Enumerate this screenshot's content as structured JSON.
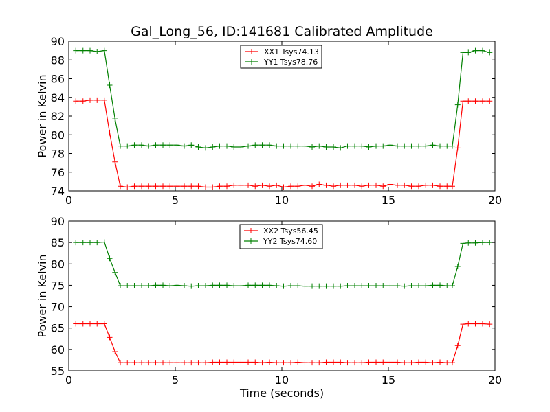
{
  "chart_data": [
    {
      "type": "line",
      "title": "Gal_Long_56, ID:141681 Calibrated Amplitude",
      "xlabel": "",
      "ylabel": "Power in Kelvin",
      "xlim": [
        0,
        20
      ],
      "ylim": [
        74,
        90
      ],
      "xticks": [
        0,
        5,
        10,
        15,
        20
      ],
      "yticks": [
        74,
        76,
        78,
        80,
        82,
        84,
        86,
        88,
        90
      ],
      "legend_position": "top-center",
      "grid": false,
      "x": [
        0.33,
        0.67,
        1.0,
        1.33,
        1.67,
        1.92,
        2.17,
        2.42,
        2.75,
        3.08,
        3.42,
        3.75,
        4.08,
        4.42,
        4.75,
        5.08,
        5.42,
        5.75,
        6.08,
        6.42,
        6.75,
        7.08,
        7.42,
        7.75,
        8.08,
        8.42,
        8.75,
        9.08,
        9.42,
        9.75,
        10.08,
        10.42,
        10.75,
        11.08,
        11.42,
        11.75,
        12.08,
        12.42,
        12.75,
        13.08,
        13.42,
        13.75,
        14.08,
        14.42,
        14.75,
        15.08,
        15.42,
        15.75,
        16.08,
        16.42,
        16.75,
        17.08,
        17.42,
        17.75,
        18.0,
        18.25,
        18.5,
        18.75,
        19.08,
        19.42,
        19.75
      ],
      "series": [
        {
          "name": "XX1 Tsys74.13",
          "color": "#ff0000",
          "values": [
            83.6,
            83.6,
            83.7,
            83.7,
            83.7,
            80.2,
            77.1,
            74.5,
            74.4,
            74.5,
            74.5,
            74.5,
            74.5,
            74.5,
            74.5,
            74.5,
            74.5,
            74.5,
            74.5,
            74.4,
            74.4,
            74.5,
            74.5,
            74.6,
            74.6,
            74.6,
            74.5,
            74.6,
            74.5,
            74.6,
            74.4,
            74.5,
            74.5,
            74.6,
            74.5,
            74.7,
            74.6,
            74.5,
            74.6,
            74.6,
            74.6,
            74.5,
            74.6,
            74.6,
            74.5,
            74.7,
            74.6,
            74.6,
            74.5,
            74.5,
            74.6,
            74.6,
            74.5,
            74.5,
            74.5,
            78.6,
            83.6,
            83.6,
            83.6,
            83.6,
            83.6
          ]
        },
        {
          "name": "YY1 Tsys78.76",
          "color": "#008000",
          "values": [
            89.0,
            89.0,
            89.0,
            88.9,
            89.0,
            85.3,
            81.7,
            78.8,
            78.8,
            78.9,
            78.9,
            78.8,
            78.9,
            78.9,
            78.9,
            78.9,
            78.8,
            78.9,
            78.7,
            78.6,
            78.7,
            78.8,
            78.8,
            78.7,
            78.7,
            78.8,
            78.9,
            78.9,
            78.9,
            78.8,
            78.8,
            78.8,
            78.8,
            78.8,
            78.7,
            78.8,
            78.7,
            78.7,
            78.6,
            78.8,
            78.8,
            78.8,
            78.7,
            78.8,
            78.8,
            78.9,
            78.8,
            78.8,
            78.8,
            78.8,
            78.8,
            78.9,
            78.8,
            78.8,
            78.8,
            83.2,
            88.8,
            88.8,
            89.0,
            89.0,
            88.8
          ]
        }
      ]
    },
    {
      "type": "line",
      "title": "",
      "xlabel": "Time (seconds)",
      "ylabel": "Power in Kelvin",
      "xlim": [
        0,
        20
      ],
      "ylim": [
        55,
        90
      ],
      "xticks": [
        0,
        5,
        10,
        15,
        20
      ],
      "yticks": [
        55,
        60,
        65,
        70,
        75,
        80,
        85,
        90
      ],
      "legend_position": "top-center",
      "grid": false,
      "x": [
        0.33,
        0.67,
        1.0,
        1.33,
        1.67,
        1.92,
        2.17,
        2.42,
        2.75,
        3.08,
        3.42,
        3.75,
        4.08,
        4.42,
        4.75,
        5.08,
        5.42,
        5.75,
        6.08,
        6.42,
        6.75,
        7.08,
        7.42,
        7.75,
        8.08,
        8.42,
        8.75,
        9.08,
        9.42,
        9.75,
        10.08,
        10.42,
        10.75,
        11.08,
        11.42,
        11.75,
        12.08,
        12.42,
        12.75,
        13.08,
        13.42,
        13.75,
        14.08,
        14.42,
        14.75,
        15.08,
        15.42,
        15.75,
        16.08,
        16.42,
        16.75,
        17.08,
        17.42,
        17.75,
        18.0,
        18.25,
        18.5,
        18.75,
        19.08,
        19.42,
        19.75
      ],
      "series": [
        {
          "name": "XX2 Tsys56.45",
          "color": "#ff0000",
          "values": [
            66.0,
            66.0,
            66.0,
            66.0,
            66.0,
            62.8,
            59.5,
            56.9,
            56.9,
            56.9,
            56.9,
            56.9,
            56.9,
            56.9,
            56.9,
            56.9,
            56.9,
            56.9,
            56.9,
            56.9,
            57.0,
            57.0,
            57.0,
            57.0,
            57.0,
            57.0,
            57.0,
            56.9,
            57.0,
            56.9,
            56.9,
            56.9,
            57.0,
            56.9,
            56.9,
            56.9,
            57.0,
            57.0,
            57.0,
            56.9,
            56.9,
            56.9,
            57.0,
            57.0,
            57.0,
            57.0,
            57.0,
            56.9,
            56.9,
            57.0,
            57.0,
            56.9,
            57.0,
            56.9,
            56.9,
            60.9,
            65.9,
            66.0,
            66.0,
            66.0,
            65.9
          ]
        },
        {
          "name": "YY2 Tsys74.60",
          "color": "#008000",
          "values": [
            85.0,
            85.0,
            85.0,
            85.0,
            85.1,
            81.3,
            78.0,
            74.9,
            74.9,
            74.9,
            74.9,
            74.9,
            75.0,
            75.0,
            74.9,
            75.0,
            74.9,
            74.8,
            74.9,
            74.9,
            75.0,
            75.0,
            75.0,
            74.9,
            74.9,
            75.0,
            75.0,
            75.0,
            75.0,
            74.9,
            74.8,
            74.9,
            74.9,
            74.8,
            74.8,
            74.8,
            74.8,
            74.8,
            74.8,
            74.9,
            74.9,
            74.9,
            74.9,
            74.9,
            74.9,
            74.9,
            74.9,
            74.8,
            74.9,
            74.9,
            74.9,
            75.0,
            75.0,
            74.9,
            74.9,
            79.4,
            84.8,
            84.9,
            84.9,
            85.0,
            85.0
          ]
        }
      ]
    }
  ]
}
